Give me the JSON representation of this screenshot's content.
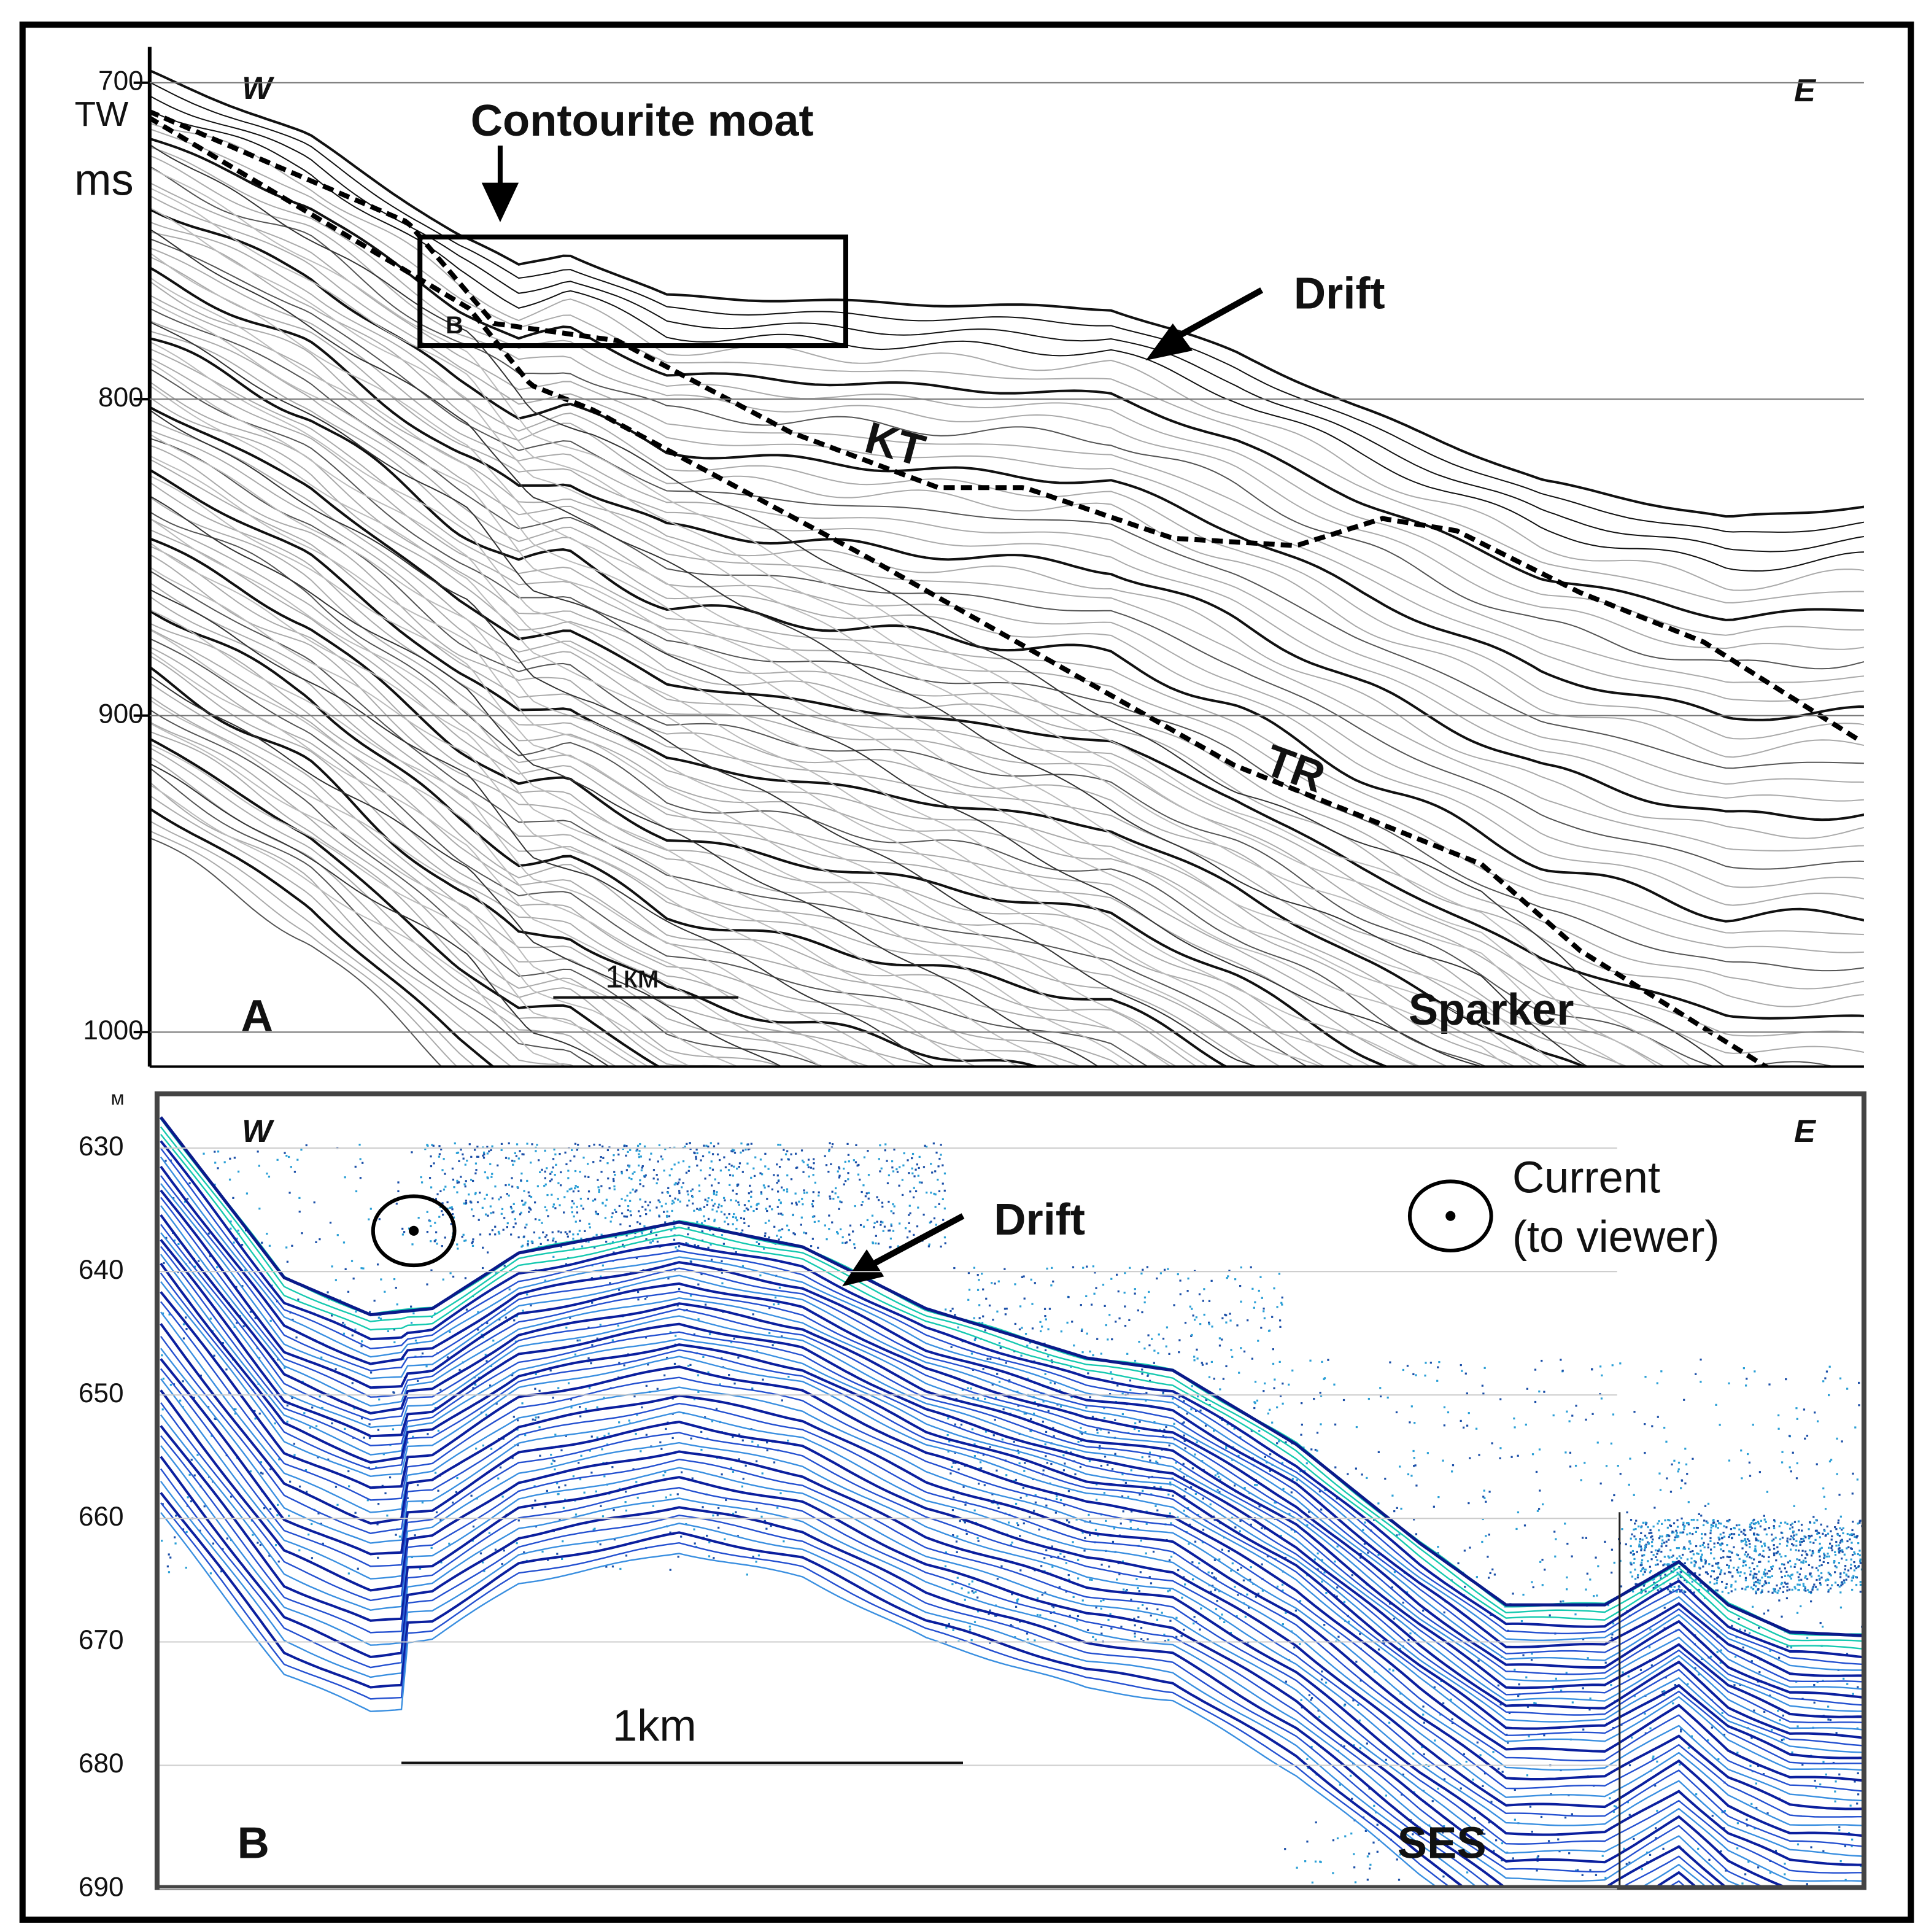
{
  "panel_a": {
    "letter": "A",
    "west": "W",
    "east": "E",
    "axis_label_top": "TW",
    "axis_label_bottom": "ms",
    "yticks": [
      700,
      800,
      900,
      1000
    ],
    "ylim": [
      689,
      1010
    ],
    "moat_label": "Contourite moat",
    "box_label": "B",
    "drift_label": "Drift",
    "kt_label": "KT",
    "tr_label": "TR",
    "scale_label": "1км",
    "method": "Sparker"
  },
  "panel_b": {
    "letter": "B",
    "west": "W",
    "east": "E",
    "unit": "м",
    "yticks": [
      630,
      640,
      650,
      660,
      670,
      680,
      690
    ],
    "ylim": [
      625.6,
      690
    ],
    "drift_label": "Drift",
    "current_label": "Current",
    "current_note": "(to viewer)",
    "scale_label": "1km",
    "method": "SES"
  }
}
